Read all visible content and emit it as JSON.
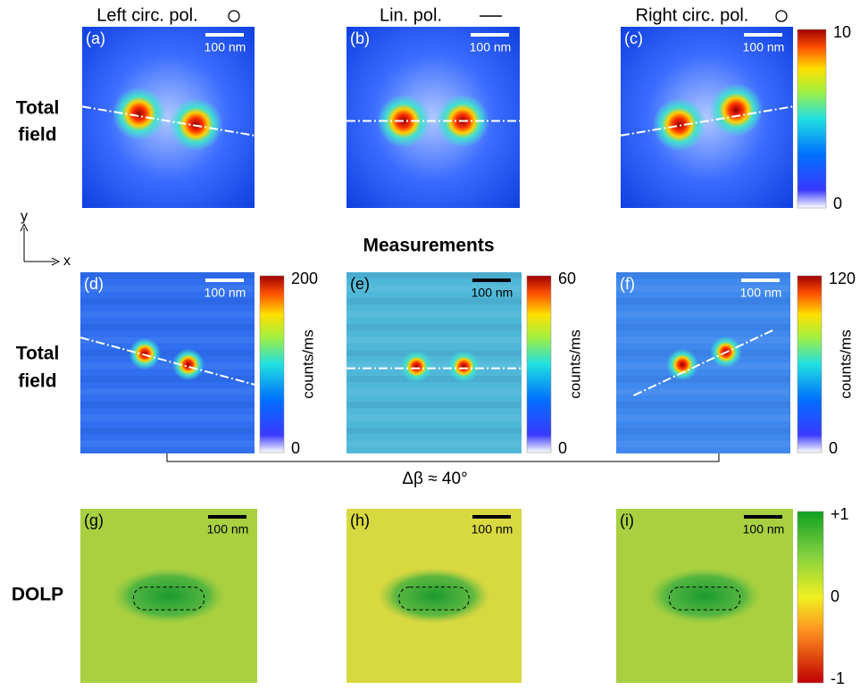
{
  "columns": [
    "Left circ. pol.",
    "Lin. pol.",
    "Right circ. pol."
  ],
  "rows": [
    [
      "Total",
      "field"
    ],
    [
      "Total",
      "field"
    ],
    [
      "DOLP"
    ]
  ],
  "section_title": "Measurements",
  "axes": {
    "y": "y",
    "x": "x"
  },
  "panels": [
    {
      "label": "(a)",
      "scale_bar": "100 nm"
    },
    {
      "label": "(b)",
      "scale_bar": "100 nm"
    },
    {
      "label": "(c)",
      "scale_bar": "100 nm"
    },
    {
      "label": "(d)",
      "scale_bar": "100 nm"
    },
    {
      "label": "(e)",
      "scale_bar": "100 nm"
    },
    {
      "label": "(f)",
      "scale_bar": "100 nm"
    },
    {
      "label": "(g)",
      "scale_bar": "100 nm"
    },
    {
      "label": "(h)",
      "scale_bar": "100 nm"
    },
    {
      "label": "(i)",
      "scale_bar": "100 nm"
    }
  ],
  "colorbars": [
    {
      "ticks": [
        "10",
        "0"
      ]
    },
    {
      "ticks": [
        "200",
        "0"
      ],
      "unit": "counts/ms"
    },
    {
      "ticks": [
        "60",
        "0"
      ],
      "unit": "counts/ms"
    },
    {
      "ticks": [
        "120",
        "0"
      ],
      "unit": "counts/ms"
    },
    {
      "ticks": [
        "+1",
        "0",
        "-1"
      ]
    }
  ],
  "annotation": "Δβ ≈ 40°"
}
